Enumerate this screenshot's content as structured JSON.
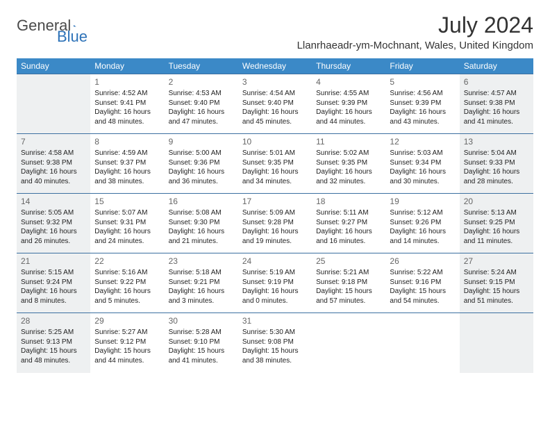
{
  "logo": {
    "general": "General",
    "blue": "Blue"
  },
  "header": {
    "title": "July 2024",
    "location": "Llanrhaeadr-ym-Mochnant, Wales, United Kingdom"
  },
  "dayHeaders": [
    "Sunday",
    "Monday",
    "Tuesday",
    "Wednesday",
    "Thursday",
    "Friday",
    "Saturday"
  ],
  "colors": {
    "headerBg": "#3b89c7",
    "rowBorder": "#3b6fa0",
    "shaded": "#eef0f1",
    "logoBlue": "#2d72b8"
  },
  "weeks": [
    [
      {
        "day": "",
        "shaded": true
      },
      {
        "day": "1",
        "sunrise": "Sunrise: 4:52 AM",
        "sunset": "Sunset: 9:41 PM",
        "dl1": "Daylight: 16 hours",
        "dl2": "and 48 minutes."
      },
      {
        "day": "2",
        "sunrise": "Sunrise: 4:53 AM",
        "sunset": "Sunset: 9:40 PM",
        "dl1": "Daylight: 16 hours",
        "dl2": "and 47 minutes."
      },
      {
        "day": "3",
        "sunrise": "Sunrise: 4:54 AM",
        "sunset": "Sunset: 9:40 PM",
        "dl1": "Daylight: 16 hours",
        "dl2": "and 45 minutes."
      },
      {
        "day": "4",
        "sunrise": "Sunrise: 4:55 AM",
        "sunset": "Sunset: 9:39 PM",
        "dl1": "Daylight: 16 hours",
        "dl2": "and 44 minutes."
      },
      {
        "day": "5",
        "sunrise": "Sunrise: 4:56 AM",
        "sunset": "Sunset: 9:39 PM",
        "dl1": "Daylight: 16 hours",
        "dl2": "and 43 minutes."
      },
      {
        "day": "6",
        "sunrise": "Sunrise: 4:57 AM",
        "sunset": "Sunset: 9:38 PM",
        "dl1": "Daylight: 16 hours",
        "dl2": "and 41 minutes.",
        "shaded": true
      }
    ],
    [
      {
        "day": "7",
        "sunrise": "Sunrise: 4:58 AM",
        "sunset": "Sunset: 9:38 PM",
        "dl1": "Daylight: 16 hours",
        "dl2": "and 40 minutes.",
        "shaded": true
      },
      {
        "day": "8",
        "sunrise": "Sunrise: 4:59 AM",
        "sunset": "Sunset: 9:37 PM",
        "dl1": "Daylight: 16 hours",
        "dl2": "and 38 minutes."
      },
      {
        "day": "9",
        "sunrise": "Sunrise: 5:00 AM",
        "sunset": "Sunset: 9:36 PM",
        "dl1": "Daylight: 16 hours",
        "dl2": "and 36 minutes."
      },
      {
        "day": "10",
        "sunrise": "Sunrise: 5:01 AM",
        "sunset": "Sunset: 9:35 PM",
        "dl1": "Daylight: 16 hours",
        "dl2": "and 34 minutes."
      },
      {
        "day": "11",
        "sunrise": "Sunrise: 5:02 AM",
        "sunset": "Sunset: 9:35 PM",
        "dl1": "Daylight: 16 hours",
        "dl2": "and 32 minutes."
      },
      {
        "day": "12",
        "sunrise": "Sunrise: 5:03 AM",
        "sunset": "Sunset: 9:34 PM",
        "dl1": "Daylight: 16 hours",
        "dl2": "and 30 minutes."
      },
      {
        "day": "13",
        "sunrise": "Sunrise: 5:04 AM",
        "sunset": "Sunset: 9:33 PM",
        "dl1": "Daylight: 16 hours",
        "dl2": "and 28 minutes.",
        "shaded": true
      }
    ],
    [
      {
        "day": "14",
        "sunrise": "Sunrise: 5:05 AM",
        "sunset": "Sunset: 9:32 PM",
        "dl1": "Daylight: 16 hours",
        "dl2": "and 26 minutes.",
        "shaded": true
      },
      {
        "day": "15",
        "sunrise": "Sunrise: 5:07 AM",
        "sunset": "Sunset: 9:31 PM",
        "dl1": "Daylight: 16 hours",
        "dl2": "and 24 minutes."
      },
      {
        "day": "16",
        "sunrise": "Sunrise: 5:08 AM",
        "sunset": "Sunset: 9:30 PM",
        "dl1": "Daylight: 16 hours",
        "dl2": "and 21 minutes."
      },
      {
        "day": "17",
        "sunrise": "Sunrise: 5:09 AM",
        "sunset": "Sunset: 9:28 PM",
        "dl1": "Daylight: 16 hours",
        "dl2": "and 19 minutes."
      },
      {
        "day": "18",
        "sunrise": "Sunrise: 5:11 AM",
        "sunset": "Sunset: 9:27 PM",
        "dl1": "Daylight: 16 hours",
        "dl2": "and 16 minutes."
      },
      {
        "day": "19",
        "sunrise": "Sunrise: 5:12 AM",
        "sunset": "Sunset: 9:26 PM",
        "dl1": "Daylight: 16 hours",
        "dl2": "and 14 minutes."
      },
      {
        "day": "20",
        "sunrise": "Sunrise: 5:13 AM",
        "sunset": "Sunset: 9:25 PM",
        "dl1": "Daylight: 16 hours",
        "dl2": "and 11 minutes.",
        "shaded": true
      }
    ],
    [
      {
        "day": "21",
        "sunrise": "Sunrise: 5:15 AM",
        "sunset": "Sunset: 9:24 PM",
        "dl1": "Daylight: 16 hours",
        "dl2": "and 8 minutes.",
        "shaded": true
      },
      {
        "day": "22",
        "sunrise": "Sunrise: 5:16 AM",
        "sunset": "Sunset: 9:22 PM",
        "dl1": "Daylight: 16 hours",
        "dl2": "and 5 minutes."
      },
      {
        "day": "23",
        "sunrise": "Sunrise: 5:18 AM",
        "sunset": "Sunset: 9:21 PM",
        "dl1": "Daylight: 16 hours",
        "dl2": "and 3 minutes."
      },
      {
        "day": "24",
        "sunrise": "Sunrise: 5:19 AM",
        "sunset": "Sunset: 9:19 PM",
        "dl1": "Daylight: 16 hours",
        "dl2": "and 0 minutes."
      },
      {
        "day": "25",
        "sunrise": "Sunrise: 5:21 AM",
        "sunset": "Sunset: 9:18 PM",
        "dl1": "Daylight: 15 hours",
        "dl2": "and 57 minutes."
      },
      {
        "day": "26",
        "sunrise": "Sunrise: 5:22 AM",
        "sunset": "Sunset: 9:16 PM",
        "dl1": "Daylight: 15 hours",
        "dl2": "and 54 minutes."
      },
      {
        "day": "27",
        "sunrise": "Sunrise: 5:24 AM",
        "sunset": "Sunset: 9:15 PM",
        "dl1": "Daylight: 15 hours",
        "dl2": "and 51 minutes.",
        "shaded": true
      }
    ],
    [
      {
        "day": "28",
        "sunrise": "Sunrise: 5:25 AM",
        "sunset": "Sunset: 9:13 PM",
        "dl1": "Daylight: 15 hours",
        "dl2": "and 48 minutes.",
        "shaded": true
      },
      {
        "day": "29",
        "sunrise": "Sunrise: 5:27 AM",
        "sunset": "Sunset: 9:12 PM",
        "dl1": "Daylight: 15 hours",
        "dl2": "and 44 minutes."
      },
      {
        "day": "30",
        "sunrise": "Sunrise: 5:28 AM",
        "sunset": "Sunset: 9:10 PM",
        "dl1": "Daylight: 15 hours",
        "dl2": "and 41 minutes."
      },
      {
        "day": "31",
        "sunrise": "Sunrise: 5:30 AM",
        "sunset": "Sunset: 9:08 PM",
        "dl1": "Daylight: 15 hours",
        "dl2": "and 38 minutes."
      },
      {
        "day": ""
      },
      {
        "day": ""
      },
      {
        "day": "",
        "shaded": true
      }
    ]
  ]
}
